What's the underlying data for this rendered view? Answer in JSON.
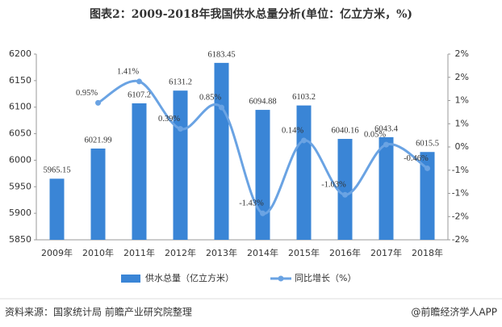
{
  "chart_data": {
    "type": "bar_line",
    "title": "图表2：2009-2018年我国供水总量分析(单位：亿立方米，%)",
    "categories": [
      "2009年",
      "2010年",
      "2011年",
      "2012年",
      "2013年",
      "2014年",
      "2015年",
      "2016年",
      "2017年",
      "2018年"
    ],
    "series": [
      {
        "name": "供水总量（亿立方米）",
        "type": "bar",
        "color": "#3a85d6",
        "values": [
          5965.15,
          6021.99,
          6107.2,
          6131.2,
          6183.45,
          6094.88,
          6103.2,
          6040.16,
          6043.4,
          6015.5
        ]
      },
      {
        "name": "同比增长（%）",
        "type": "line",
        "axis": "y2",
        "color": "#6aa3e3",
        "values": [
          null,
          0.95,
          1.41,
          0.39,
          0.85,
          -1.43,
          0.14,
          -1.03,
          0.05,
          -0.46
        ],
        "value_labels": [
          null,
          "0.95%",
          "1.41%",
          "0.39%",
          "0.85%",
          "-1.43%",
          "0.14%",
          "-1.03%",
          "0.05%",
          "-0.46%"
        ]
      }
    ],
    "ylim": [
      5850,
      6200
    ],
    "yticks": [
      5850,
      5900,
      5950,
      6000,
      6050,
      6100,
      6150,
      6200
    ],
    "y2lim": [
      -2,
      2
    ],
    "y2ticks": [
      {
        "value": -2,
        "label": "-2%"
      },
      {
        "value": -1.5,
        "label": "-2%"
      },
      {
        "value": -1,
        "label": "-1%"
      },
      {
        "value": -0.5,
        "label": "-1%"
      },
      {
        "value": 0,
        "label": "0%"
      },
      {
        "value": 0.5,
        "label": "1%"
      },
      {
        "value": 1,
        "label": "1%"
      },
      {
        "value": 1.5,
        "label": "2%"
      },
      {
        "value": 2,
        "label": "2%"
      }
    ],
    "source": "资料来源：国家统计局 前瞻产业研究院整理",
    "brand": "@前瞻经济学人APP"
  }
}
